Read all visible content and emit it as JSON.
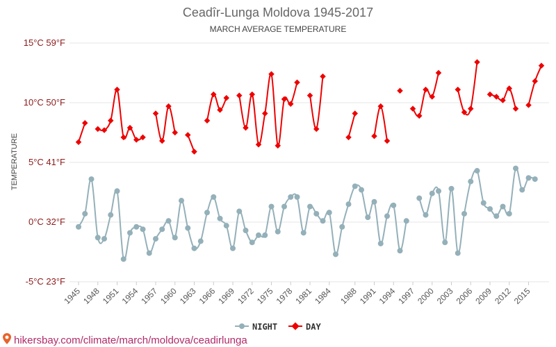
{
  "chart_data": {
    "type": "line",
    "title": "Ceadîr-Lunga Moldova 1945-2017",
    "subtitle": "MARCH AVERAGE TEMPERATURE",
    "ylabel": "TEMPERATURE",
    "ylim": [
      -5,
      15
    ],
    "yticks": [
      {
        "value": 15,
        "label": "15°C 59°F"
      },
      {
        "value": 10,
        "label": "10°C 50°F"
      },
      {
        "value": 5,
        "label": "5°C 41°F"
      },
      {
        "value": 0,
        "label": "0°C 32°F"
      },
      {
        "value": -5,
        "label": "-5°C 23°F"
      }
    ],
    "x_range": [
      1945,
      2017
    ],
    "xticks": [
      "1945",
      "1948",
      "1951",
      "1954",
      "1957",
      "1960",
      "1963",
      "1966",
      "1969",
      "1972",
      "1975",
      "1978",
      "1981",
      "1984",
      "1988",
      "1991",
      "1994",
      "1997",
      "2000",
      "2003",
      "2006",
      "2009",
      "2012",
      "2015"
    ],
    "legend_position": "bottom-center",
    "grid": true,
    "series": [
      {
        "name": "NIGHT",
        "color": "#94b0b9",
        "x": [
          1945,
          1946,
          1947,
          1948,
          1949,
          1950,
          1951,
          1952,
          1953,
          1954,
          1955,
          1956,
          1957,
          1958,
          1959,
          1960,
          1961,
          1962,
          1963,
          1964,
          1965,
          1966,
          1967,
          1968,
          1969,
          1970,
          1971,
          1972,
          1973,
          1974,
          1975,
          1976,
          1977,
          1978,
          1979,
          1980,
          1981,
          1982,
          1983,
          1984,
          1985,
          1986,
          1987,
          1988,
          1989,
          1990,
          1991,
          1992,
          1993,
          1994,
          1995,
          1996,
          1997,
          1998,
          1999,
          2000,
          2001,
          2002,
          2003,
          2004,
          2005,
          2006,
          2007,
          2008,
          2009,
          2010,
          2011,
          2012,
          2013,
          2014,
          2015,
          2016,
          2017
        ],
        "values": [
          -0.4,
          0.7,
          3.6,
          -1.3,
          -1.4,
          0.6,
          2.6,
          -3.1,
          -0.9,
          -0.4,
          -0.6,
          -2.6,
          -1.4,
          -0.6,
          0.1,
          -1.3,
          1.8,
          -0.5,
          -2.2,
          -1.6,
          0.8,
          2.1,
          0.3,
          -0.3,
          -2.2,
          0.9,
          -0.7,
          -1.7,
          -1.1,
          -1.1,
          1.3,
          -0.8,
          1.3,
          2.1,
          2.1,
          -0.9,
          1.3,
          0.7,
          0.1,
          0.8,
          -2.7,
          -0.4,
          1.5,
          3.0,
          2.7,
          0.4,
          1.7,
          -1.8,
          0.5,
          1.4,
          -2.4,
          0.1,
          null,
          2.0,
          0.6,
          2.4,
          2.6,
          -1.7,
          2.8,
          -2.6,
          0.7,
          3.4,
          4.3,
          1.6,
          1.1,
          0.5,
          1.3,
          0.7,
          4.5,
          2.7,
          3.7,
          3.6,
          null
        ]
      },
      {
        "name": "DAY",
        "color": "#ee0000",
        "x": [
          1945,
          1946,
          1947,
          1948,
          1949,
          1950,
          1951,
          1952,
          1953,
          1954,
          1955,
          1956,
          1957,
          1958,
          1959,
          1960,
          1961,
          1962,
          1963,
          1964,
          1965,
          1966,
          1967,
          1968,
          1969,
          1970,
          1971,
          1972,
          1973,
          1974,
          1975,
          1976,
          1977,
          1978,
          1979,
          1980,
          1981,
          1982,
          1983,
          1984,
          1985,
          1986,
          1987,
          1988,
          1989,
          1990,
          1991,
          1992,
          1993,
          1994,
          1995,
          1996,
          1997,
          1998,
          1999,
          2000,
          2001,
          2002,
          2003,
          2004,
          2005,
          2006,
          2007,
          2008,
          2009,
          2010,
          2011,
          2012,
          2013,
          2014,
          2015,
          2016,
          2017
        ],
        "values": [
          6.7,
          8.3,
          null,
          7.8,
          7.7,
          8.5,
          11.1,
          7.1,
          7.9,
          6.9,
          7.1,
          null,
          9.1,
          6.8,
          9.7,
          7.5,
          null,
          7.3,
          5.9,
          null,
          8.5,
          10.7,
          9.4,
          10.4,
          null,
          10.6,
          7.9,
          10.7,
          6.5,
          9.1,
          12.4,
          6.4,
          10.3,
          9.9,
          11.7,
          null,
          10.6,
          7.8,
          12.2,
          null,
          null,
          null,
          7.1,
          9.1,
          null,
          null,
          7.2,
          9.7,
          6.8,
          null,
          11.0,
          null,
          9.5,
          8.9,
          11.1,
          10.5,
          12.5,
          null,
          null,
          11.1,
          9.2,
          9.5,
          13.4,
          null,
          10.7,
          10.5,
          10.2,
          11.2,
          9.5,
          null,
          9.8,
          11.8,
          13.1
        ]
      }
    ]
  },
  "source_text": "hikersbay.com/climate/march/moldova/ceadirlunga",
  "icons": {
    "source": "map-pin-icon"
  }
}
